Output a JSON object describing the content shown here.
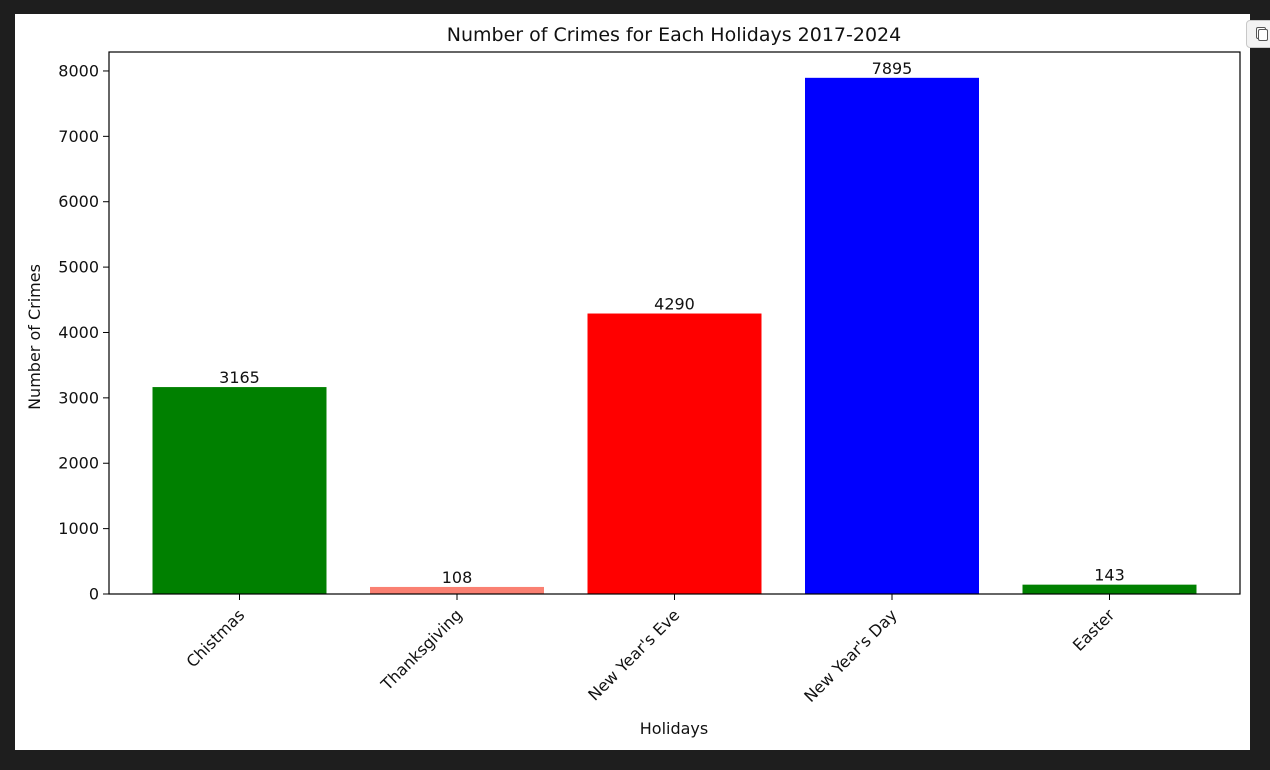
{
  "copy_button": {
    "icon": "copy-icon"
  },
  "chart_data": {
    "type": "bar",
    "title": "Number of Crimes for Each Holidays 2017-2024",
    "xlabel": "Holidays",
    "ylabel": "Number of Crimes",
    "categories": [
      "Chistmas",
      "Thanksgiving",
      "New Year's Eve",
      "New Year's Day",
      "Easter"
    ],
    "values": [
      3165,
      108,
      4290,
      7895,
      143
    ],
    "colors": [
      "#008000",
      "#fa8072",
      "#ff0000",
      "#0000ff",
      "#008000"
    ],
    "ylim": [
      0,
      8290
    ],
    "yticks": [
      0,
      1000,
      2000,
      3000,
      4000,
      5000,
      6000,
      7000,
      8000
    ],
    "grid": false,
    "legend": "none"
  }
}
